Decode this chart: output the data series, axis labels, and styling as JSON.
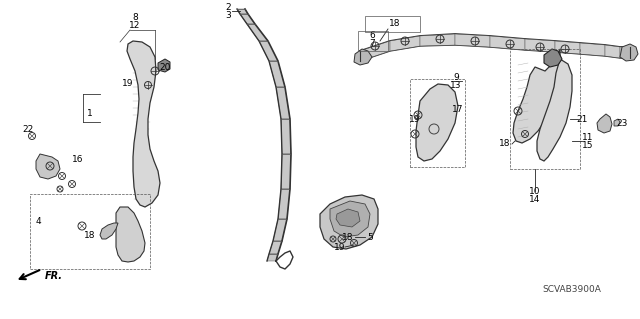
{
  "bg_color": "#ffffff",
  "line_color": "#000000",
  "diagram_code": "SCVAB3900A",
  "fig_width": 6.4,
  "fig_height": 3.19,
  "dpi": 100
}
